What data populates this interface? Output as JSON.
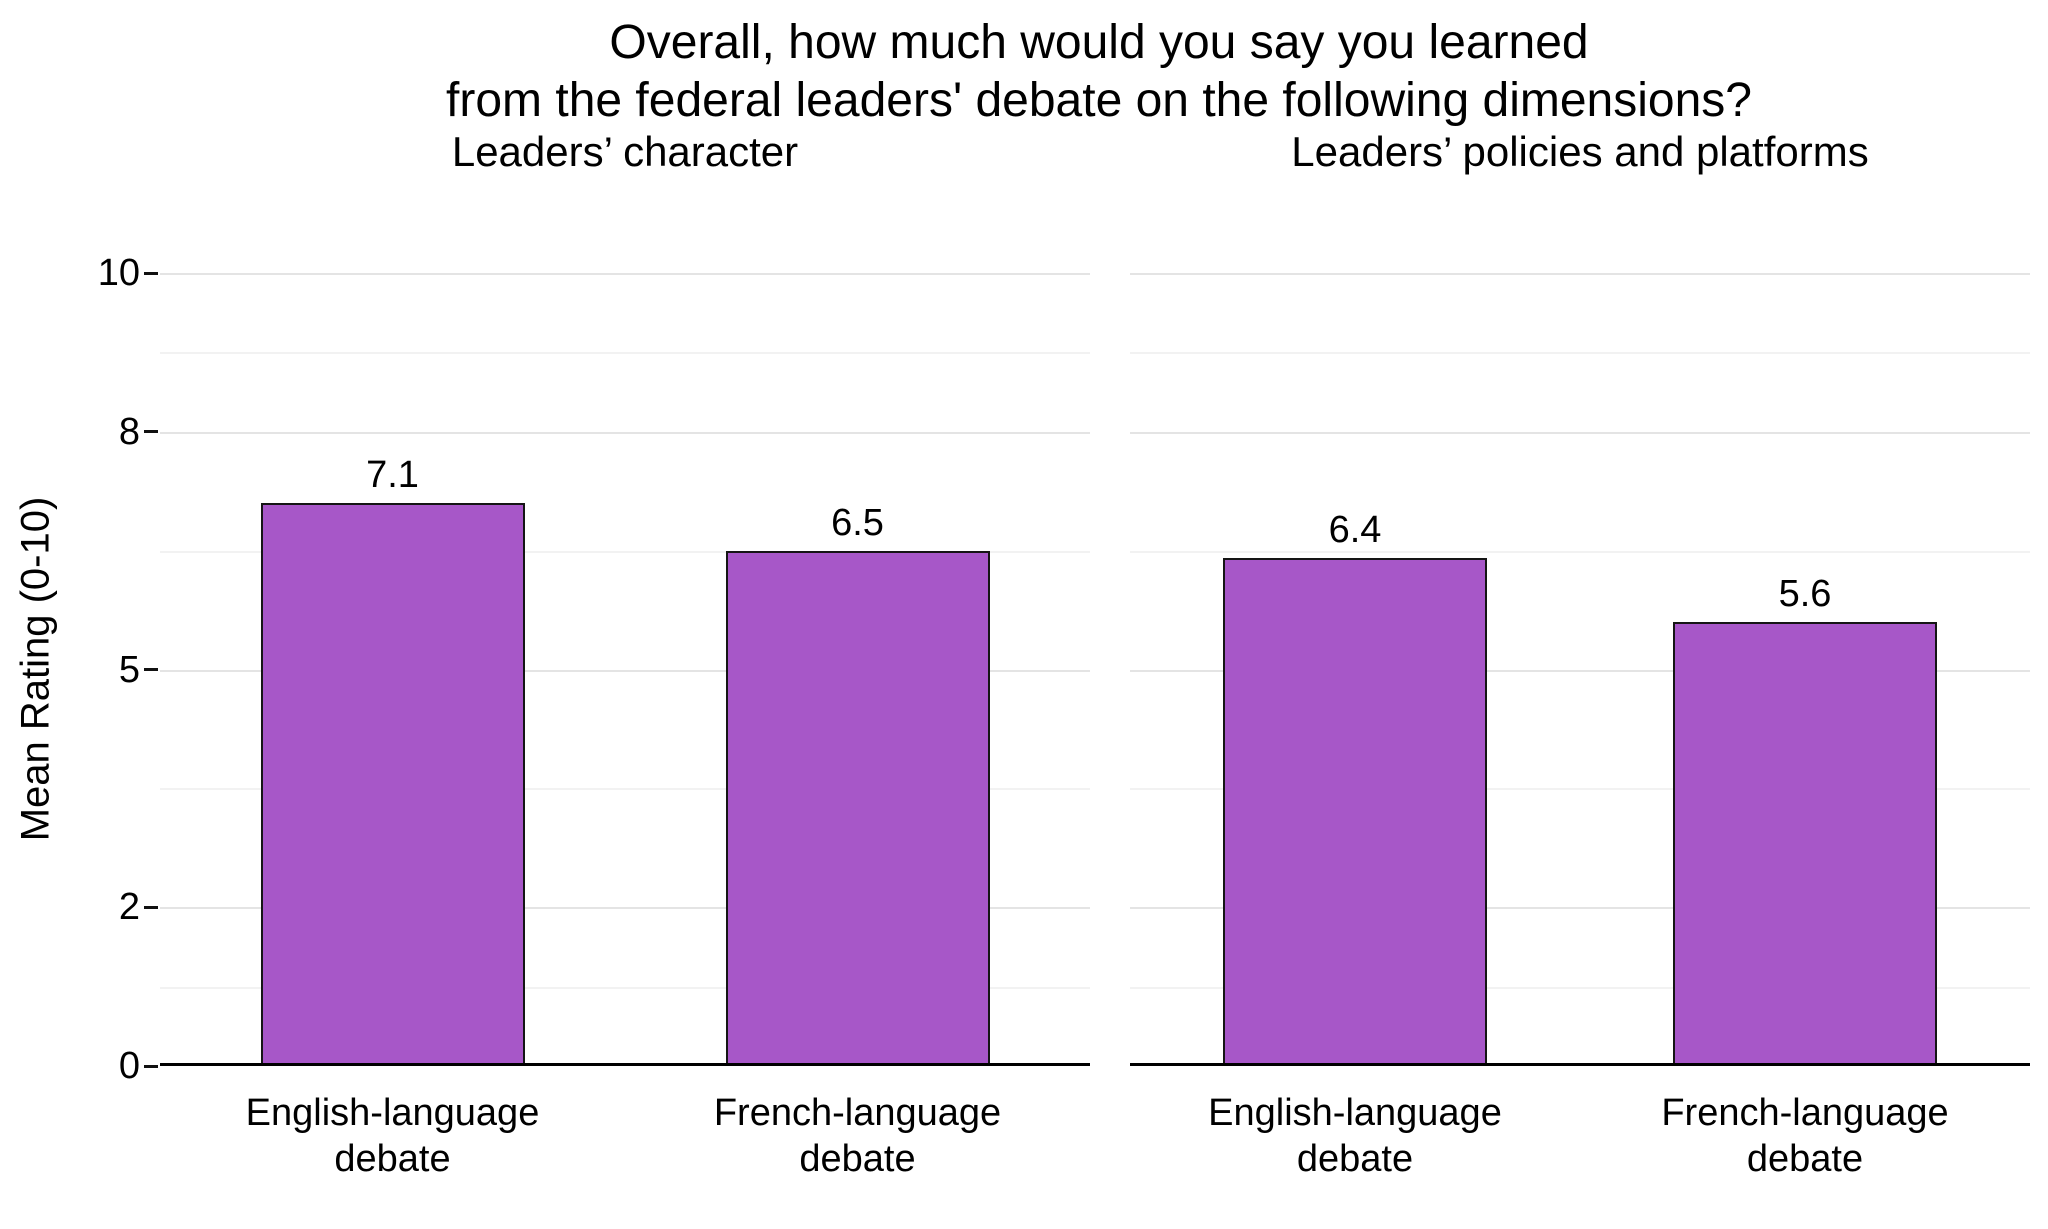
{
  "chart": {
    "title_lines": [
      "Overall, how much would you say you learned",
      "from the federal leaders' debate on the following dimensions?"
    ],
    "ylabel": "Mean Rating (0-10)"
  },
  "chart_data": {
    "type": "bar",
    "title": "Overall, how much would you say you learned from the federal leaders' debate on the following dimensions?",
    "ylabel": "Mean Rating (0-10)",
    "ylim": [
      0,
      10
    ],
    "yticks": [
      0,
      2,
      5,
      8,
      10
    ],
    "grid": "major+minor horizontal",
    "legend": "none",
    "bar_color": "#a757c8",
    "bar_border_color": "#151515",
    "panels": [
      {
        "label": "Leaders’ character",
        "categories": [
          "English-language\ndebate",
          "French-language\ndebate"
        ],
        "values": [
          7.1,
          6.5
        ]
      },
      {
        "label": "Leaders’ policies and platforms",
        "categories": [
          "English-language\ndebate",
          "French-language\ndebate"
        ],
        "values": [
          6.4,
          5.6
        ]
      }
    ]
  }
}
